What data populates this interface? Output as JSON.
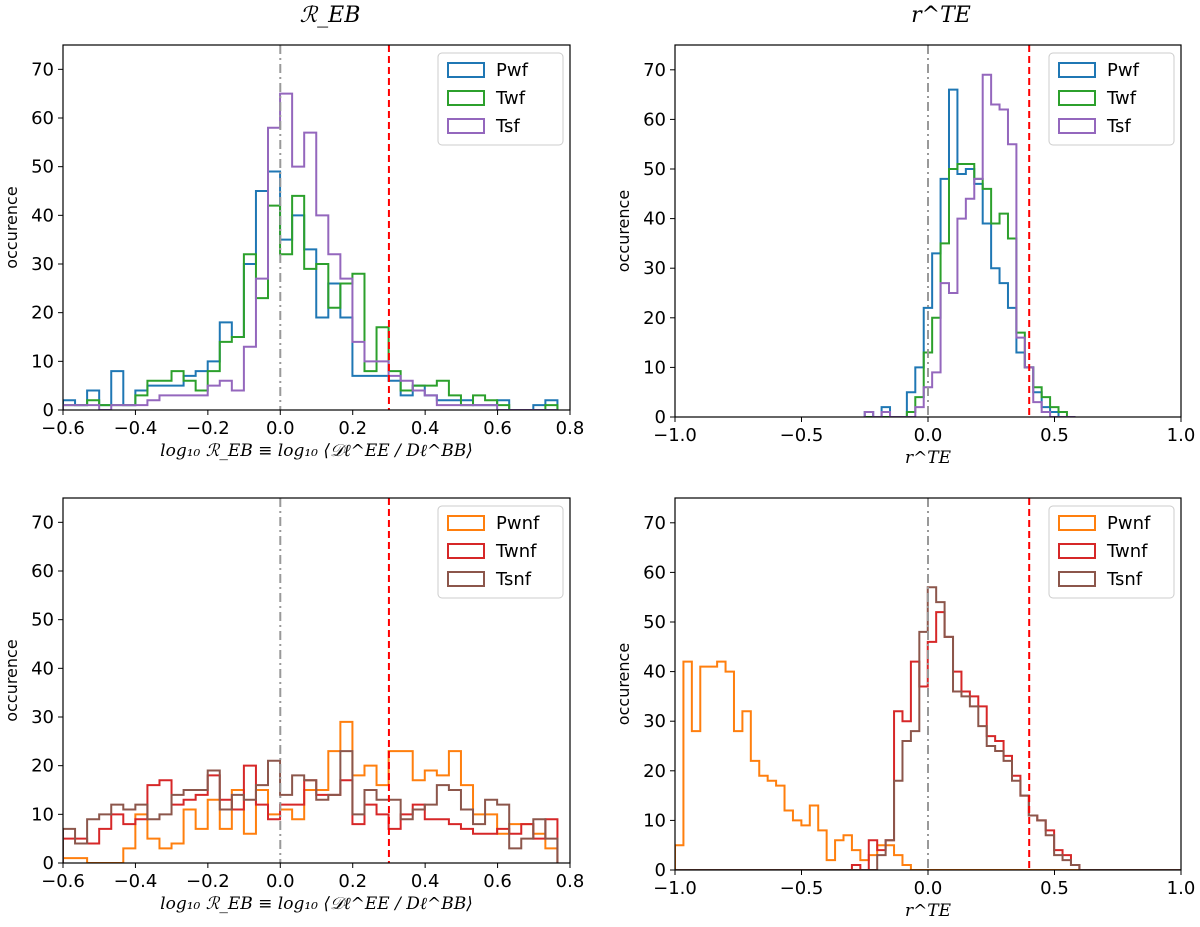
{
  "figure": {
    "titles": [
      "ℛ_EB",
      "r^TE"
    ],
    "colors": {
      "Pwf": "#1f77b4",
      "Twf": "#2ca02c",
      "Tsf": "#9467bd",
      "Pwnf": "#ff7f0e",
      "Twnf": "#d62728",
      "Tsnf": "#8c564b",
      "gray_line": "#999999",
      "red_line": "#ff0000"
    }
  },
  "chart_data": [
    {
      "type": "histogram",
      "panel": "top-left",
      "title": "ℛ_EB",
      "xlabel": "log₁₀ ℛ_EB ≡ log₁₀ ⟨𝒟ℓ^EE / Dℓ^BB⟩",
      "ylabel": "occurence",
      "xlim": [
        -0.6,
        0.8
      ],
      "ylim": [
        0,
        75
      ],
      "xticks": [
        "−0.6",
        "−0.4",
        "−0.2",
        "0.0",
        "0.2",
        "0.4",
        "0.6",
        "0.8"
      ],
      "xtick_values": [
        -0.6,
        -0.4,
        -0.2,
        0.0,
        0.2,
        0.4,
        0.6,
        0.8
      ],
      "yticks": [
        "0",
        "10",
        "20",
        "30",
        "40",
        "50",
        "60",
        "70"
      ],
      "ytick_values": [
        0,
        10,
        20,
        30,
        40,
        50,
        60,
        70
      ],
      "bin_start": -0.6,
      "bin_width": 0.0333,
      "vlines": [
        {
          "x": 0.0,
          "style": "dashdot",
          "color": "gray"
        },
        {
          "x": 0.3,
          "style": "dashed",
          "color": "red"
        }
      ],
      "legend": "top-right",
      "series": [
        {
          "name": "Pwf",
          "values": [
            2,
            1,
            4,
            1,
            8,
            1,
            4,
            5,
            5,
            5,
            7,
            8,
            10,
            18,
            15,
            30,
            45,
            49,
            35,
            40,
            33,
            19,
            26,
            19,
            7,
            7,
            7,
            6,
            3,
            5,
            3,
            2,
            2,
            2,
            1,
            1,
            2,
            0,
            0,
            1,
            2
          ]
        },
        {
          "name": "Twf",
          "values": [
            1,
            1,
            2,
            1,
            1,
            1,
            3,
            6,
            6,
            8,
            6,
            4,
            8,
            14,
            15,
            32,
            23,
            42,
            32,
            44,
            29,
            30,
            21,
            26,
            28,
            8,
            17,
            8,
            4,
            5,
            5,
            6,
            3,
            1,
            3,
            2,
            1,
            0,
            0,
            0,
            1
          ]
        },
        {
          "name": "Tsf",
          "values": [
            1,
            1,
            1,
            0,
            1,
            1,
            1,
            2,
            3,
            3,
            3,
            3,
            5,
            6,
            4,
            13,
            27,
            58,
            65,
            50,
            57,
            40,
            32,
            27,
            14,
            10,
            10,
            7,
            6,
            4,
            3,
            1,
            1,
            1,
            1,
            1,
            0,
            0,
            0,
            0,
            0
          ]
        }
      ]
    },
    {
      "type": "histogram",
      "panel": "top-right",
      "title": "r^TE",
      "xlabel": "r^TE",
      "ylabel": "occurence",
      "xlim": [
        -1.0,
        1.0
      ],
      "ylim": [
        0,
        75
      ],
      "xticks": [
        "−1.0",
        "−0.5",
        "0.0",
        "0.5",
        "1.0"
      ],
      "xtick_values": [
        -1.0,
        -0.5,
        0.0,
        0.5,
        1.0
      ],
      "yticks": [
        "0",
        "10",
        "20",
        "30",
        "40",
        "50",
        "60",
        "70"
      ],
      "ytick_values": [
        0,
        10,
        20,
        30,
        40,
        50,
        60,
        70
      ],
      "bin_start": -0.25,
      "bin_width": 0.0333,
      "vlines": [
        {
          "x": 0.0,
          "style": "dashdot",
          "color": "gray"
        },
        {
          "x": 0.4,
          "style": "dashed",
          "color": "red"
        }
      ],
      "legend": "top-right",
      "series": [
        {
          "name": "Pwf",
          "values": [
            1,
            0,
            2,
            0,
            0,
            5,
            10,
            22,
            33,
            48,
            66,
            49,
            50,
            47,
            39,
            30,
            27,
            22,
            13,
            10,
            5,
            2,
            1,
            0,
            0
          ]
        },
        {
          "name": "Twf",
          "values": [
            0,
            0,
            0,
            0,
            0,
            1,
            4,
            13,
            20,
            35,
            50,
            51,
            51,
            48,
            46,
            39,
            41,
            36,
            17,
            10,
            6,
            4,
            2,
            1,
            0
          ]
        },
        {
          "name": "Tsf",
          "values": [
            1,
            0,
            1,
            0,
            0,
            0,
            2,
            6,
            9,
            27,
            25,
            40,
            44,
            48,
            69,
            63,
            62,
            55,
            16,
            10,
            3,
            1,
            0,
            0,
            0
          ]
        }
      ]
    },
    {
      "type": "histogram",
      "panel": "bottom-left",
      "title": "",
      "xlabel": "log₁₀ ℛ_EB ≡ log₁₀ ⟨𝒟ℓ^EE / Dℓ^BB⟩",
      "ylabel": "occurence",
      "xlim": [
        -0.6,
        0.8
      ],
      "ylim": [
        0,
        75
      ],
      "xticks": [
        "−0.6",
        "−0.4",
        "−0.2",
        "0.0",
        "0.2",
        "0.4",
        "0.6",
        "0.8"
      ],
      "xtick_values": [
        -0.6,
        -0.4,
        -0.2,
        0.0,
        0.2,
        0.4,
        0.6,
        0.8
      ],
      "yticks": [
        "0",
        "10",
        "20",
        "30",
        "40",
        "50",
        "60",
        "70"
      ],
      "ytick_values": [
        0,
        10,
        20,
        30,
        40,
        50,
        60,
        70
      ],
      "bin_start": -0.6,
      "bin_width": 0.0333,
      "vlines": [
        {
          "x": 0.0,
          "style": "dashdot",
          "color": "gray"
        },
        {
          "x": 0.3,
          "style": "dashed",
          "color": "red"
        }
      ],
      "legend": "top-right",
      "series": [
        {
          "name": "Pwnf",
          "values": [
            1,
            1,
            0,
            0,
            0,
            3,
            10,
            5,
            3,
            4,
            11,
            7,
            13,
            7,
            15,
            6,
            15,
            10,
            11,
            9,
            15,
            15,
            23,
            29,
            18,
            20,
            16,
            23,
            23,
            17,
            19,
            18,
            23,
            16,
            10,
            10,
            6,
            8,
            8,
            6,
            3
          ]
        },
        {
          "name": "Twnf",
          "values": [
            5,
            5,
            4,
            7,
            10,
            8,
            9,
            16,
            17,
            12,
            13,
            14,
            18,
            13,
            11,
            20,
            12,
            9,
            12,
            12,
            17,
            14,
            14,
            17,
            8,
            12,
            10,
            7,
            10,
            12,
            9,
            9,
            8,
            7,
            6,
            6,
            7,
            6,
            8,
            5,
            9
          ]
        },
        {
          "name": "Tsnf",
          "values": [
            7,
            4,
            9,
            10,
            12,
            11,
            12,
            9,
            10,
            14,
            15,
            15,
            19,
            11,
            14,
            13,
            16,
            21,
            14,
            18,
            17,
            13,
            14,
            23,
            10,
            15,
            13,
            13,
            9,
            11,
            12,
            16,
            15,
            11,
            8,
            13,
            12,
            3,
            5,
            9,
            5
          ]
        }
      ]
    },
    {
      "type": "histogram",
      "panel": "bottom-right",
      "title": "",
      "xlabel": "r^TE",
      "ylabel": "occurence",
      "xlim": [
        -1.0,
        1.0
      ],
      "ylim": [
        0,
        75
      ],
      "xticks": [
        "−1.0",
        "−0.5",
        "0.0",
        "0.5",
        "1.0"
      ],
      "xtick_values": [
        -1.0,
        -0.5,
        0.0,
        0.5,
        1.0
      ],
      "yticks": [
        "0",
        "10",
        "20",
        "30",
        "40",
        "50",
        "60",
        "70"
      ],
      "ytick_values": [
        0,
        10,
        20,
        30,
        40,
        50,
        60,
        70
      ],
      "bin_start": -1.0,
      "bin_width": 0.0333,
      "vlines": [
        {
          "x": 0.0,
          "style": "dashdot",
          "color": "gray"
        },
        {
          "x": 0.4,
          "style": "dashed",
          "color": "red"
        }
      ],
      "legend": "top-right",
      "series": [
        {
          "name": "Pwnf",
          "values": [
            5,
            42,
            28,
            41,
            41,
            42,
            40,
            28,
            32,
            22,
            19,
            18,
            17,
            12,
            10,
            9,
            13,
            8,
            2,
            6,
            7,
            4,
            2,
            3,
            5,
            5,
            3,
            1,
            0,
            0,
            0,
            0,
            0,
            0,
            0,
            0,
            0,
            0,
            0,
            0,
            0,
            0,
            0,
            0,
            0,
            0,
            0,
            0,
            0,
            0,
            0,
            0,
            0,
            0,
            0,
            0,
            0,
            0,
            0,
            0
          ]
        },
        {
          "name": "Twnf",
          "values": [
            0,
            0,
            0,
            0,
            0,
            0,
            0,
            0,
            0,
            0,
            0,
            0,
            0,
            0,
            0,
            0,
            0,
            0,
            0,
            0,
            0,
            1,
            0,
            6,
            4,
            6,
            32,
            30,
            42,
            37,
            46,
            52,
            47,
            40,
            36,
            35,
            33,
            27,
            26,
            23,
            19,
            15,
            11,
            10,
            8,
            4,
            3,
            1,
            0,
            0,
            0,
            0,
            0,
            0,
            0,
            0,
            0,
            0,
            0,
            0
          ]
        },
        {
          "name": "Tsnf",
          "values": [
            0,
            0,
            0,
            0,
            0,
            0,
            0,
            0,
            0,
            0,
            0,
            0,
            0,
            0,
            0,
            0,
            0,
            0,
            0,
            0,
            0,
            0,
            0,
            0,
            3,
            6,
            18,
            26,
            28,
            48,
            57,
            54,
            47,
            36,
            35,
            33,
            29,
            25,
            24,
            22,
            18,
            15,
            11,
            10,
            7,
            3,
            2,
            1,
            0,
            0,
            0,
            0,
            0,
            0,
            0,
            0,
            0,
            0,
            0,
            0
          ]
        }
      ]
    }
  ]
}
